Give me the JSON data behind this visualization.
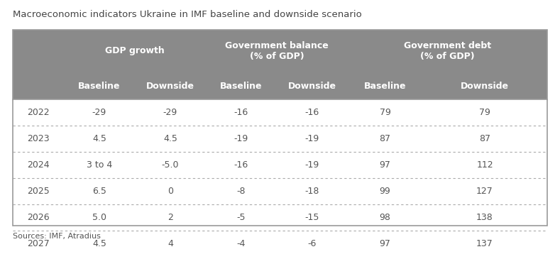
{
  "title": "Macroeconomic indicators Ukraine in IMF baseline and downside scenario",
  "source": "Sources: IMF, Atradius",
  "header_bg": "#8a8a8a",
  "header_text_color": "#ffffff",
  "data_text_color": "#555555",
  "title_color": "#444444",
  "source_color": "#555555",
  "row_bg": "#ffffff",
  "border_color": "#999999",
  "dotted_color": "#aaaaaa",
  "outer_bg": "#ffffff",
  "col_groups": [
    {
      "label": "GDP growth",
      "cols": [
        1,
        2
      ]
    },
    {
      "label": "Government balance\n(% of GDP)",
      "cols": [
        3,
        4
      ]
    },
    {
      "label": "Government debt\n(% of GDP)",
      "cols": [
        5,
        6
      ]
    }
  ],
  "sub_headers": [
    "Baseline",
    "Downside",
    "Baseline",
    "Downside",
    "Baseline",
    "Downside"
  ],
  "years": [
    "2022",
    "2023",
    "2024",
    "2025",
    "2026",
    "2027"
  ],
  "data": [
    [
      "-29",
      "-29",
      "-16",
      "-16",
      "79",
      "79"
    ],
    [
      "4.5",
      "4.5",
      "-19",
      "-19",
      "87",
      "87"
    ],
    [
      "3 to 4",
      "-5.0",
      "-16",
      "-19",
      "97",
      "112"
    ],
    [
      "6.5",
      "0",
      "-8",
      "-18",
      "99",
      "127"
    ],
    [
      "5.0",
      "2",
      "-5",
      "-15",
      "98",
      "138"
    ],
    [
      "4.5",
      "4",
      "-4",
      "-6",
      "97",
      "137"
    ]
  ],
  "title_fontsize": 9.5,
  "header_fontsize": 9,
  "data_fontsize": 9,
  "source_fontsize": 8
}
